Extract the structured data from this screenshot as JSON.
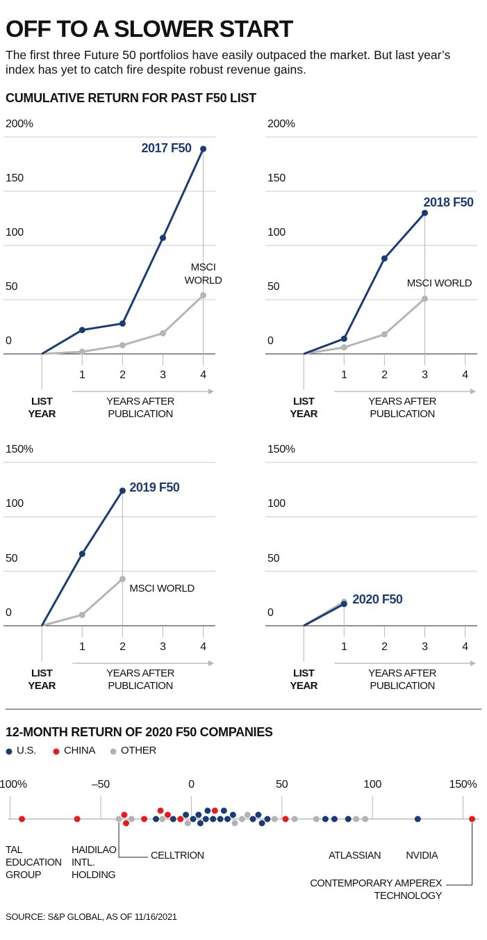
{
  "title": "OFF TO A SLOWER START",
  "subtitle": "The first three Future 50 portfolios have easily outpaced the market. But last year’s index has yet to catch fire despite robust revenue gains.",
  "section_title": "CUMULATIVE RETURN FOR PAST F50 LIST",
  "source": "SOURCE: S&P GLOBAL, AS OF 11/16/2021",
  "chart_data": [
    {
      "type": "line",
      "x": [
        0,
        1,
        2,
        3,
        4
      ],
      "xlim": [
        -0.95,
        4.3
      ],
      "xticks": [
        {
          "value": 0,
          "label": "LIST YEAR"
        },
        1,
        2,
        3,
        4
      ],
      "xlabel": "YEARS AFTER PUBLICATION",
      "ylim": [
        0,
        200
      ],
      "yticks": [
        0,
        50,
        100,
        150,
        {
          "value": 200,
          "label": "200%"
        }
      ],
      "grid": true,
      "series": [
        {
          "name": "2017 F50",
          "color": "#1b3c73",
          "values": [
            0,
            22,
            28,
            107,
            189
          ]
        },
        {
          "name": "MSCI WORLD",
          "color": "#b5b5b5",
          "values": [
            0,
            2,
            8,
            19,
            54
          ]
        }
      ]
    },
    {
      "type": "line",
      "x": [
        0,
        1,
        2,
        3
      ],
      "xlim": [
        -0.95,
        4.3
      ],
      "xticks": [
        {
          "value": 0,
          "label": "LIST YEAR"
        },
        1,
        2,
        3,
        4
      ],
      "xlabel": "YEARS AFTER PUBLICATION",
      "ylim": [
        0,
        200
      ],
      "yticks": [
        0,
        50,
        100,
        150,
        {
          "value": 200,
          "label": "200%"
        }
      ],
      "grid": true,
      "series": [
        {
          "name": "2018 F50",
          "color": "#1b3c73",
          "values": [
            0,
            14,
            88,
            130
          ]
        },
        {
          "name": "MSCI WORLD",
          "color": "#b5b5b5",
          "values": [
            0,
            6,
            18,
            51
          ]
        }
      ]
    },
    {
      "type": "line",
      "x": [
        0,
        1,
        2
      ],
      "xlim": [
        -0.95,
        4.3
      ],
      "xticks": [
        {
          "value": 0,
          "label": "LIST YEAR"
        },
        1,
        2,
        3,
        4
      ],
      "xlabel": "YEARS AFTER PUBLICATION",
      "ylim": [
        0,
        150
      ],
      "yticks": [
        0,
        50,
        100,
        {
          "value": 150,
          "label": "150%"
        }
      ],
      "grid": true,
      "series": [
        {
          "name": "2019 F50",
          "color": "#1b3c73",
          "values": [
            0,
            66,
            124
          ]
        },
        {
          "name": "MSCI WORLD",
          "color": "#b5b5b5",
          "values": [
            0,
            10,
            43
          ]
        }
      ]
    },
    {
      "type": "line",
      "x": [
        0,
        1
      ],
      "xlim": [
        -0.95,
        4.3
      ],
      "xticks": [
        {
          "value": 0,
          "label": "LIST YEAR"
        },
        1,
        2,
        3,
        4
      ],
      "xlabel": "YEARS AFTER PUBLICATION",
      "ylim": [
        0,
        150
      ],
      "yticks": [
        0,
        50,
        100,
        {
          "value": 150,
          "label": "150%"
        }
      ],
      "grid": true,
      "series": [
        {
          "name": "2020 F50",
          "color": "#1b3c73",
          "values": [
            0,
            20
          ]
        },
        {
          "color": "#b5b5b5",
          "values": [
            0,
            22
          ]
        }
      ]
    },
    {
      "type": "strip",
      "title": "12-MONTH RETURN OF 2020 F50 COMPANIES",
      "xlim": [
        -101,
        159
      ],
      "xticks": [
        {
          "value": -100,
          "label": "–100%"
        },
        {
          "value": -50,
          "label": "–50"
        },
        0,
        50,
        100,
        {
          "value": 150,
          "label": "150%"
        }
      ],
      "series": [
        {
          "name": "U.S.",
          "color": "#1b3c73",
          "values": [
            -19.5,
            -10,
            -3,
            1,
            4,
            5,
            8,
            9,
            12,
            16,
            18,
            20,
            23,
            34,
            37,
            39,
            42,
            74,
            79,
            86.6,
            125
          ],
          "labels": [
            null,
            null,
            null,
            null,
            null,
            null,
            null,
            null,
            null,
            null,
            null,
            null,
            null,
            null,
            null,
            null,
            null,
            null,
            null,
            null,
            "NVIDIA"
          ]
        },
        {
          "name": "CHINA",
          "color": "#e8191f",
          "values": [
            -93.5,
            -63,
            -37,
            -36,
            -26,
            -17,
            -13,
            -6,
            13,
            52,
            155
          ],
          "labels": [
            "TAL EDUCATION GROUP",
            "HAIDILAO INTL. HOLDING",
            null,
            null,
            null,
            null,
            null,
            null,
            null,
            null,
            "CONTEMPORARY AMPEREX TECHNOLOGY"
          ]
        },
        {
          "name": "OTHER",
          "color": "#b3b3b3",
          "values": [
            -40,
            -33,
            -16,
            -2,
            24,
            28,
            31,
            46,
            57,
            69,
            91,
            96
          ],
          "labels": [
            "CELLTRION",
            null,
            null,
            null,
            null,
            null,
            null,
            null,
            null,
            null,
            "ATLASSIAN",
            null
          ]
        }
      ]
    }
  ]
}
